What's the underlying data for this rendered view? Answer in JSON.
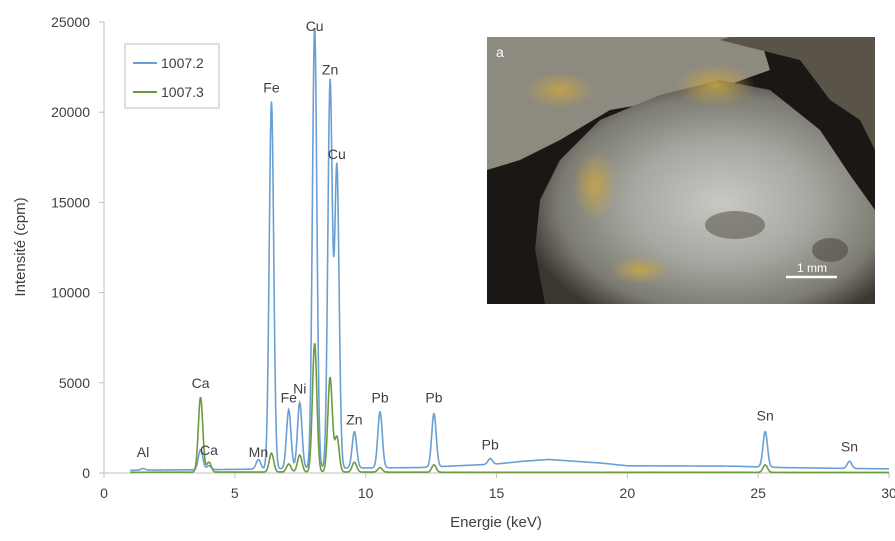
{
  "chart_data": {
    "type": "line",
    "xlabel": "Energie (keV)",
    "ylabel": "Intensité (cpm)",
    "xlim": [
      0,
      30
    ],
    "ylim": [
      0,
      25000
    ],
    "x_ticks": [
      "0",
      "5",
      "10",
      "15",
      "20",
      "25",
      "30"
    ],
    "y_ticks": [
      "0",
      "5000",
      "10000",
      "15000",
      "20000",
      "25000"
    ],
    "legend_position": "top-left",
    "grid": false,
    "series": [
      {
        "name": "1007.2",
        "color": "#6a9fd4",
        "baseline": [
          [
            1.0,
            150
          ],
          [
            5.0,
            200
          ],
          [
            8.0,
            260
          ],
          [
            12.0,
            300
          ],
          [
            15.0,
            500
          ],
          [
            16.0,
            650
          ],
          [
            17.0,
            750
          ],
          [
            18.0,
            650
          ],
          [
            19.0,
            550
          ],
          [
            20.0,
            400
          ],
          [
            24.0,
            380
          ],
          [
            26.0,
            300
          ],
          [
            28.0,
            260
          ],
          [
            30.0,
            230
          ]
        ],
        "peaks": [
          [
            1.49,
            250
          ],
          [
            3.69,
            1300
          ],
          [
            4.01,
            400
          ],
          [
            5.9,
            750
          ],
          [
            6.4,
            20600
          ],
          [
            7.06,
            3500
          ],
          [
            7.48,
            3900
          ],
          [
            8.05,
            24800
          ],
          [
            8.64,
            21700
          ],
          [
            8.9,
            17000
          ],
          [
            9.57,
            2300
          ],
          [
            10.55,
            3400
          ],
          [
            12.61,
            3300
          ],
          [
            14.76,
            800
          ],
          [
            25.27,
            2300
          ],
          [
            28.49,
            650
          ]
        ]
      },
      {
        "name": "1007.3",
        "color": "#6f9a3c",
        "baseline": [
          [
            1.0,
            40
          ],
          [
            8.0,
            60
          ],
          [
            13.0,
            40
          ],
          [
            20.0,
            40
          ],
          [
            30.0,
            30
          ]
        ],
        "peaks": [
          [
            3.69,
            4200
          ],
          [
            4.01,
            600
          ],
          [
            6.4,
            1100
          ],
          [
            7.06,
            500
          ],
          [
            7.48,
            1000
          ],
          [
            8.05,
            7200
          ],
          [
            8.64,
            5300
          ],
          [
            8.9,
            2000
          ],
          [
            9.57,
            600
          ],
          [
            10.55,
            300
          ],
          [
            12.61,
            450
          ],
          [
            25.27,
            450
          ]
        ]
      }
    ],
    "annotations": [
      {
        "text": "Al",
        "x": 1.49,
        "y": 900
      },
      {
        "text": "Ca",
        "x": 3.69,
        "y": 4700
      },
      {
        "text": "Ca",
        "x": 4.01,
        "y": 1000
      },
      {
        "text": "Mn",
        "x": 5.9,
        "y": 900
      },
      {
        "text": "Fe",
        "x": 6.4,
        "y": 21100
      },
      {
        "text": "Fe",
        "x": 7.06,
        "y": 3900
      },
      {
        "text": "Ni",
        "x": 7.48,
        "y": 4400
      },
      {
        "text": "Cu",
        "x": 8.05,
        "y": 24500
      },
      {
        "text": "Zn",
        "x": 8.64,
        "y": 22100
      },
      {
        "text": "Cu",
        "x": 8.9,
        "y": 17400
      },
      {
        "text": "Zn",
        "x": 9.57,
        "y": 2700
      },
      {
        "text": "Pb",
        "x": 10.55,
        "y": 3900
      },
      {
        "text": "Pb",
        "x": 12.61,
        "y": 3900
      },
      {
        "text": "Pb",
        "x": 14.76,
        "y": 1300
      },
      {
        "text": "Sn",
        "x": 25.27,
        "y": 2900
      },
      {
        "text": "Sn",
        "x": 28.49,
        "y": 1200
      }
    ]
  },
  "inset": {
    "label": "a",
    "scale_bar": "1 mm"
  }
}
